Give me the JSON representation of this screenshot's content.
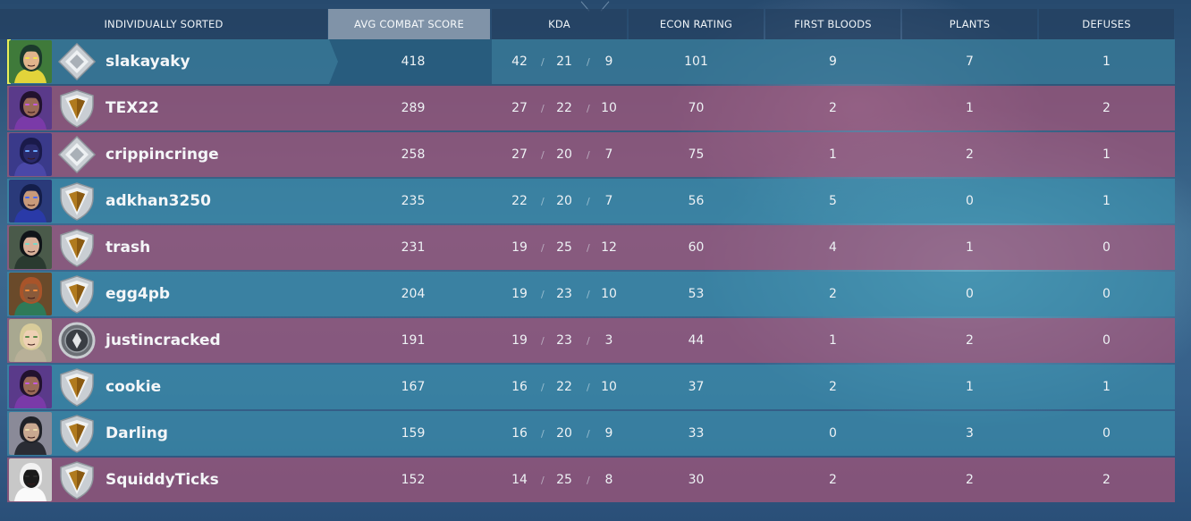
{
  "header": {
    "sort_label": "INDIVIDUALLY SORTED",
    "columns": [
      "AVG COMBAT SCORE",
      "KDA",
      "ECON RATING",
      "FIRST BLOODS",
      "PLANTS",
      "DEFUSES"
    ]
  },
  "colors": {
    "team_blue": "#3a8caa",
    "team_red": "#a55578",
    "self_flag": "#e9f05a",
    "active_header": "#8093a8"
  },
  "players": [
    {
      "name": "slakayaky",
      "team": "self",
      "rank_icon": "silver-rank-icon",
      "agent_icon": "killjoy-portrait-icon",
      "acs": "418",
      "kills": "42",
      "deaths": "21",
      "assists": "9",
      "econ": "101",
      "first_bloods": "9",
      "plants": "7",
      "defuses": "1"
    },
    {
      "name": "TEX22",
      "team": "red",
      "rank_icon": "gold-rank-icon",
      "agent_icon": "reyna-portrait-icon",
      "acs": "289",
      "kills": "27",
      "deaths": "22",
      "assists": "10",
      "econ": "70",
      "first_bloods": "2",
      "plants": "1",
      "defuses": "2"
    },
    {
      "name": "crippincringe",
      "team": "red",
      "rank_icon": "silver-rank-icon",
      "agent_icon": "omen-portrait-icon",
      "acs": "258",
      "kills": "27",
      "deaths": "20",
      "assists": "7",
      "econ": "75",
      "first_bloods": "1",
      "plants": "2",
      "defuses": "1"
    },
    {
      "name": "adkhan3250",
      "team": "blue",
      "rank_icon": "gold-rank-icon",
      "agent_icon": "yoru-portrait-icon",
      "acs": "235",
      "kills": "22",
      "deaths": "20",
      "assists": "7",
      "econ": "56",
      "first_bloods": "5",
      "plants": "0",
      "defuses": "1"
    },
    {
      "name": "trash",
      "team": "red",
      "rank_icon": "gold-rank-icon",
      "agent_icon": "sage-portrait-icon",
      "acs": "231",
      "kills": "19",
      "deaths": "25",
      "assists": "12",
      "econ": "60",
      "first_bloods": "4",
      "plants": "1",
      "defuses": "0"
    },
    {
      "name": "egg4pb",
      "team": "blue",
      "rank_icon": "gold-rank-icon",
      "agent_icon": "raze-portrait-icon",
      "acs": "204",
      "kills": "19",
      "deaths": "23",
      "assists": "10",
      "econ": "53",
      "first_bloods": "2",
      "plants": "0",
      "defuses": "0"
    },
    {
      "name": "justincracked",
      "team": "red",
      "rank_icon": "bronze-rank-icon",
      "agent_icon": "skye-portrait-icon",
      "acs": "191",
      "kills": "19",
      "deaths": "23",
      "assists": "3",
      "econ": "44",
      "first_bloods": "1",
      "plants": "2",
      "defuses": "0"
    },
    {
      "name": "cookie",
      "team": "blue",
      "rank_icon": "gold-rank-icon",
      "agent_icon": "reyna-portrait-icon",
      "acs": "167",
      "kills": "16",
      "deaths": "22",
      "assists": "10",
      "econ": "37",
      "first_bloods": "2",
      "plants": "1",
      "defuses": "1"
    },
    {
      "name": "Darling",
      "team": "blue",
      "rank_icon": "gold-rank-icon",
      "agent_icon": "chamber-portrait-icon",
      "acs": "159",
      "kills": "16",
      "deaths": "20",
      "assists": "9",
      "econ": "33",
      "first_bloods": "0",
      "plants": "3",
      "defuses": "0"
    },
    {
      "name": "SquiddyTicks",
      "team": "red",
      "rank_icon": "gold-rank-icon",
      "agent_icon": "cypher-portrait-icon",
      "acs": "152",
      "kills": "14",
      "deaths": "25",
      "assists": "8",
      "econ": "30",
      "first_bloods": "2",
      "plants": "2",
      "defuses": "2"
    }
  ]
}
